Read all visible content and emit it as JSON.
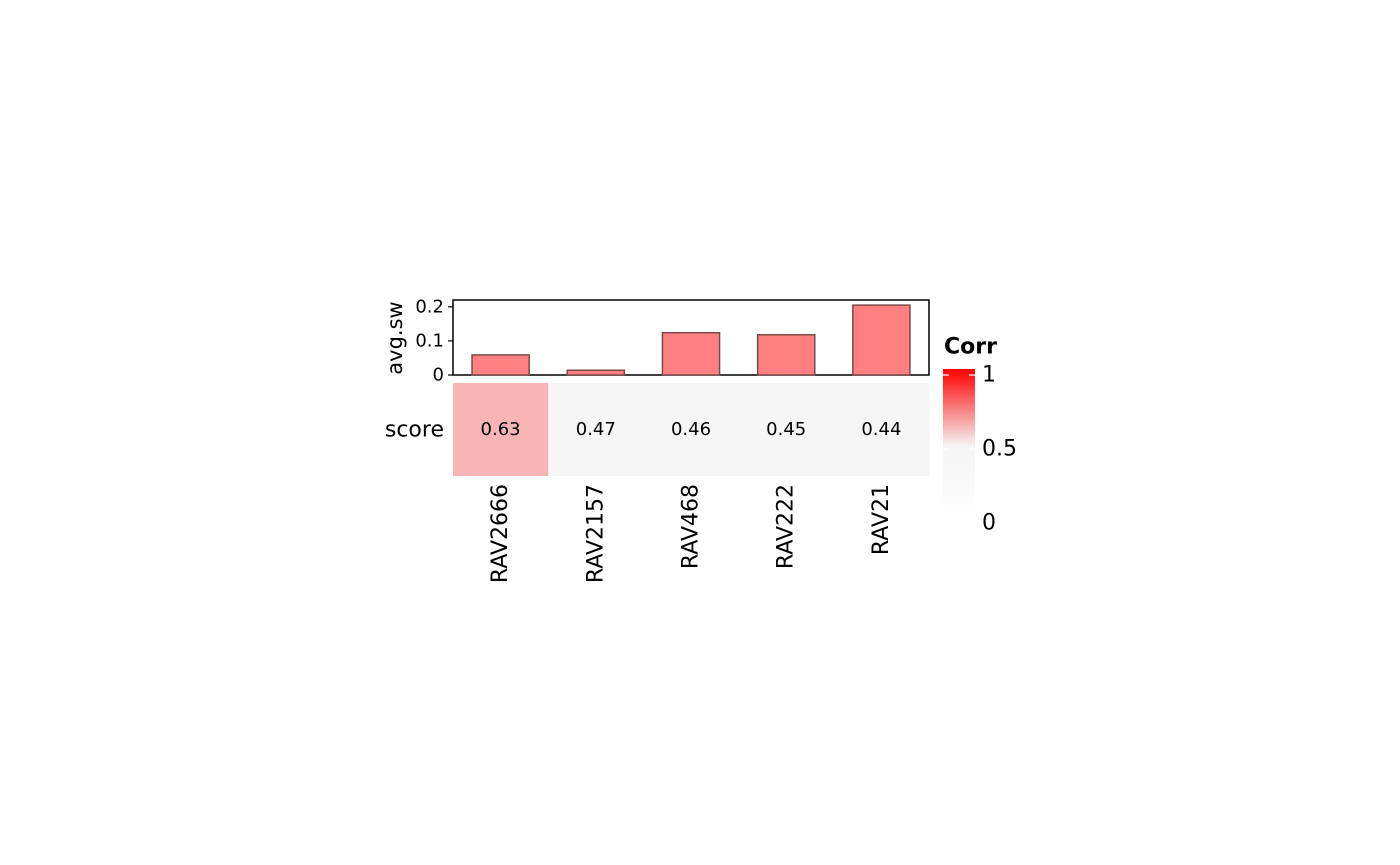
{
  "chart_data": {
    "type": "bar",
    "categories": [
      "RAV2666",
      "RAV2157",
      "RAV468",
      "RAV222",
      "RAV21"
    ],
    "bar_panel": {
      "ylabel": "avg.sw",
      "values": [
        0.059,
        0.014,
        0.124,
        0.118,
        0.205
      ],
      "ylim": [
        0,
        0.22
      ],
      "yticks": [
        0,
        0.1,
        0.2
      ],
      "ytick_labels": [
        "0",
        "0.1",
        "0.2"
      ],
      "bar_color": "#ff8080",
      "bar_edge_color": "#7a4a4a"
    },
    "heatmap": {
      "row_label": "score",
      "values": [
        0.63,
        0.47,
        0.46,
        0.45,
        0.44
      ],
      "cell_labels": [
        "0.63",
        "0.47",
        "0.46",
        "0.45",
        "0.44"
      ]
    },
    "legend": {
      "title": "Corr",
      "ticks": [
        1,
        0.5,
        0
      ],
      "tick_labels": [
        "1",
        "0.5",
        "0"
      ],
      "color_high": "#ff0000",
      "color_mid": "#f5f5f5",
      "color_low": "#ffffff",
      "range": [
        0,
        1
      ]
    }
  }
}
